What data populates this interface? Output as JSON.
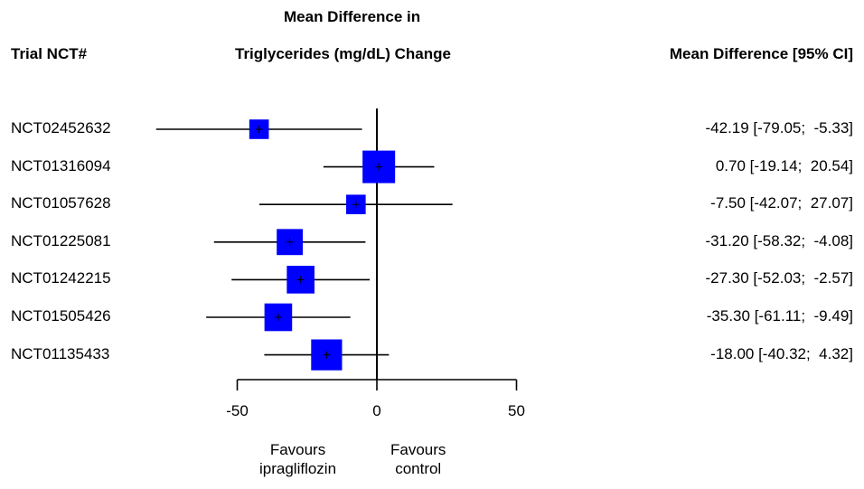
{
  "header": {
    "trial_label": "Trial NCT#",
    "title_line1": "Mean Difference in",
    "title_line2": "Triglycerides (mg/dL) Change",
    "ci_label": "Mean Difference [95% CI]"
  },
  "footer": {
    "favours_left_line1": "Favours",
    "favours_left_line2": "ipragliflozin",
    "favours_right_line1": "Favours",
    "favours_right_line2": "control"
  },
  "chart_data": {
    "type": "forest",
    "title": "Mean Difference in Triglycerides (mg/dL) Change",
    "xlim": [
      -50,
      50
    ],
    "xticks": [
      -50,
      0,
      50
    ],
    "xtick_labels": [
      "-50",
      "0",
      "50"
    ],
    "reference_line": 0,
    "marker_color": "#0000ff",
    "studies": [
      {
        "id": "NCT02452632",
        "mean": -42.19,
        "lower": -79.05,
        "upper": -5.33,
        "label": "-42.19 [-79.05;  -5.33]",
        "weight": 0.6
      },
      {
        "id": "NCT01316094",
        "mean": 0.7,
        "lower": -19.14,
        "upper": 20.54,
        "label": "0.70 [-19.14;  20.54]",
        "weight": 1.0
      },
      {
        "id": "NCT01057628",
        "mean": -7.5,
        "lower": -42.07,
        "upper": 27.07,
        "label": "-7.50 [-42.07;  27.07]",
        "weight": 0.6
      },
      {
        "id": "NCT01225081",
        "mean": -31.2,
        "lower": -58.32,
        "upper": -4.08,
        "label": "-31.20 [-58.32;  -4.08]",
        "weight": 0.8
      },
      {
        "id": "NCT01242215",
        "mean": -27.3,
        "lower": -52.03,
        "upper": -2.57,
        "label": "-27.30 [-52.03;  -2.57]",
        "weight": 0.85
      },
      {
        "id": "NCT01505426",
        "mean": -35.3,
        "lower": -61.11,
        "upper": -9.49,
        "label": "-35.30 [-61.11;  -9.49]",
        "weight": 0.85
      },
      {
        "id": "NCT01135433",
        "mean": -18.0,
        "lower": -40.32,
        "upper": 4.32,
        "label": "-18.00 [-40.32;  4.32]",
        "weight": 0.95
      }
    ]
  }
}
